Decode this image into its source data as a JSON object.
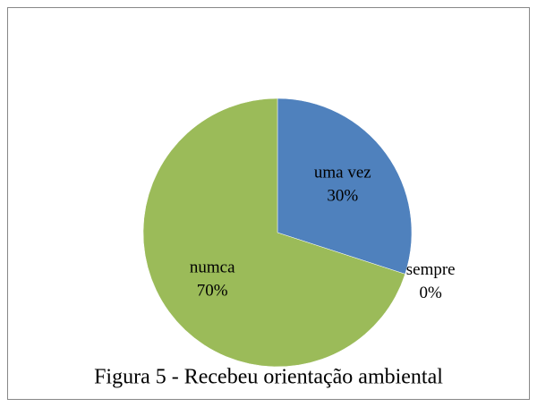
{
  "chart_data": {
    "type": "pie",
    "title": "Figura 5 - Recebeu orientação ambiental",
    "categories": [
      "uma vez",
      "sempre",
      "numca"
    ],
    "values": [
      30,
      0,
      70
    ],
    "value_labels": [
      "30%",
      "0%",
      "70%"
    ],
    "colors": [
      "#4f81bd",
      "#c0504d",
      "#9bbb59"
    ]
  }
}
